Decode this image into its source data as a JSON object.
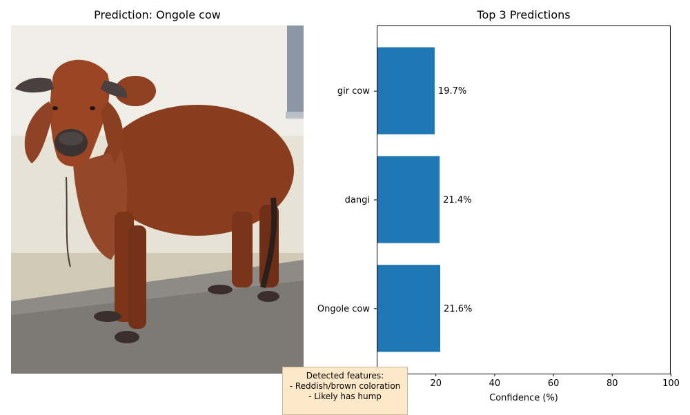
{
  "left_panel": {
    "title": "Prediction: Ongole cow"
  },
  "features_box": {
    "heading": "Detected features:",
    "items": [
      "- Reddish/brown coloration",
      "- Likely has hump"
    ]
  },
  "chart_data": {
    "type": "bar",
    "orientation": "horizontal",
    "title": "Top 3 Predictions",
    "xlabel": "Confidence (%)",
    "ylabel": "",
    "xlim": [
      0,
      100
    ],
    "xticks": [
      0,
      20,
      40,
      60,
      80,
      100
    ],
    "categories": [
      "Ongole cow",
      "dangi",
      "gir cow"
    ],
    "values": [
      21.6,
      21.4,
      19.7
    ],
    "value_labels": [
      "21.6%",
      "21.4%",
      "19.7%"
    ],
    "bar_color": "#1f77b4",
    "grid": false
  }
}
